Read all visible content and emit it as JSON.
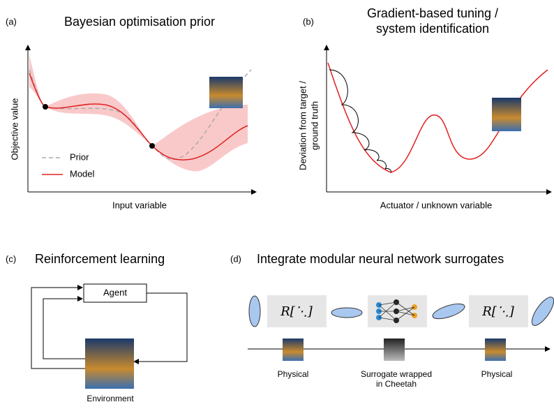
{
  "panels": {
    "a": {
      "label": "(a)",
      "title": "Bayesian optimisation prior",
      "y_label": "Objective value",
      "x_label": "Input variable",
      "legend": [
        "Prior",
        "Model"
      ]
    },
    "b": {
      "label": "(b)",
      "title": [
        "Gradient-based tuning /",
        "system identification"
      ],
      "y_label": [
        "Deviation from target /",
        "ground truth"
      ],
      "x_label": "Actuator / unknown variable"
    },
    "c": {
      "label": "(c)",
      "title": "Reinforcement learning",
      "agent": "Agent",
      "environment": "Environment"
    },
    "d": {
      "label": "(d)",
      "title": "Integrate modular neural network surrogates",
      "operator": "R[⋱]",
      "stages": [
        "Physical",
        [
          "Surrogate wrapped",
          "in Cheetah"
        ],
        "Physical"
      ]
    }
  }
}
